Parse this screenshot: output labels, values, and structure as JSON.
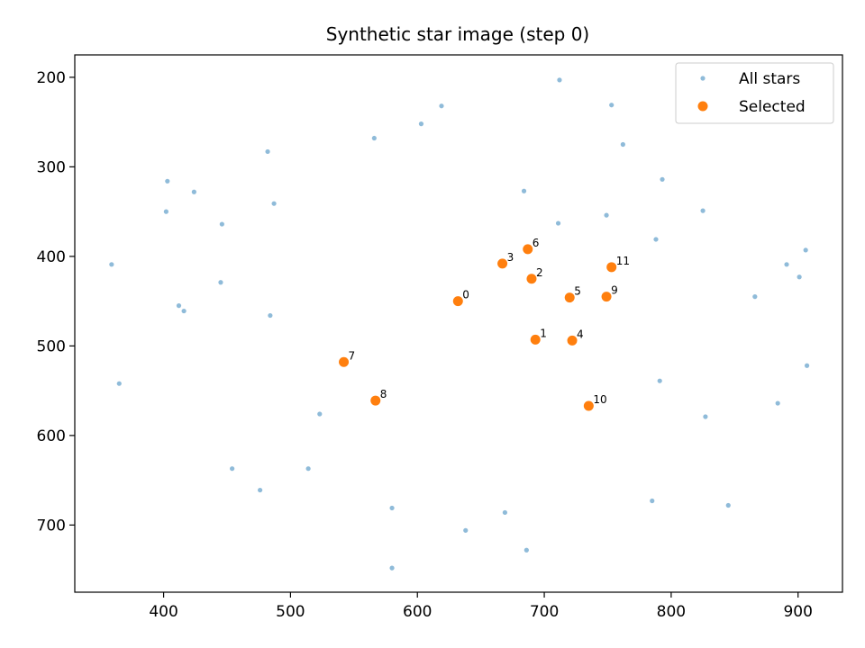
{
  "chart_data": {
    "type": "scatter",
    "title": "Synthetic star image (step 0)",
    "xlabel": "",
    "ylabel": "",
    "xlim": [
      330,
      935
    ],
    "ylim": [
      775,
      175
    ],
    "y_inverted": true,
    "grid": false,
    "legend_position": "top-right",
    "x_ticks": [
      400,
      500,
      600,
      700,
      800,
      900
    ],
    "y_ticks": [
      200,
      300,
      400,
      500,
      600,
      700
    ],
    "series": [
      {
        "name": "All stars",
        "color": "#1f77b4",
        "marker": "small-dot",
        "points": [
          [
            712,
            203
          ],
          [
            753,
            231
          ],
          [
            619,
            232
          ],
          [
            603,
            252
          ],
          [
            566,
            268
          ],
          [
            762,
            275
          ],
          [
            482,
            283
          ],
          [
            793,
            314
          ],
          [
            403,
            316
          ],
          [
            424,
            328
          ],
          [
            684,
            327
          ],
          [
            487,
            341
          ],
          [
            402,
            350
          ],
          [
            825,
            349
          ],
          [
            749,
            354
          ],
          [
            446,
            364
          ],
          [
            711,
            363
          ],
          [
            788,
            381
          ],
          [
            906,
            393
          ],
          [
            359,
            409
          ],
          [
            891,
            409
          ],
          [
            901,
            423
          ],
          [
            445,
            429
          ],
          [
            866,
            445
          ],
          [
            412,
            455
          ],
          [
            416,
            461
          ],
          [
            484,
            466
          ],
          [
            907,
            522
          ],
          [
            365,
            542
          ],
          [
            791,
            539
          ],
          [
            884,
            564
          ],
          [
            523,
            576
          ],
          [
            827,
            579
          ],
          [
            454,
            637
          ],
          [
            514,
            637
          ],
          [
            476,
            661
          ],
          [
            785,
            673
          ],
          [
            845,
            678
          ],
          [
            580,
            681
          ],
          [
            669,
            686
          ],
          [
            638,
            706
          ],
          [
            686,
            728
          ],
          [
            580,
            748
          ]
        ]
      },
      {
        "name": "Selected",
        "color": "#ff7f0e",
        "marker": "dot",
        "points": [
          {
            "label": "0",
            "x": 632,
            "y": 450
          },
          {
            "label": "1",
            "x": 693,
            "y": 493
          },
          {
            "label": "2",
            "x": 690,
            "y": 425
          },
          {
            "label": "3",
            "x": 667,
            "y": 408
          },
          {
            "label": "4",
            "x": 722,
            "y": 494
          },
          {
            "label": "5",
            "x": 720,
            "y": 446
          },
          {
            "label": "6",
            "x": 687,
            "y": 392
          },
          {
            "label": "7",
            "x": 542,
            "y": 518
          },
          {
            "label": "8",
            "x": 567,
            "y": 561
          },
          {
            "label": "9",
            "x": 749,
            "y": 445
          },
          {
            "label": "10",
            "x": 735,
            "y": 567
          },
          {
            "label": "11",
            "x": 753,
            "y": 412
          }
        ]
      }
    ]
  }
}
